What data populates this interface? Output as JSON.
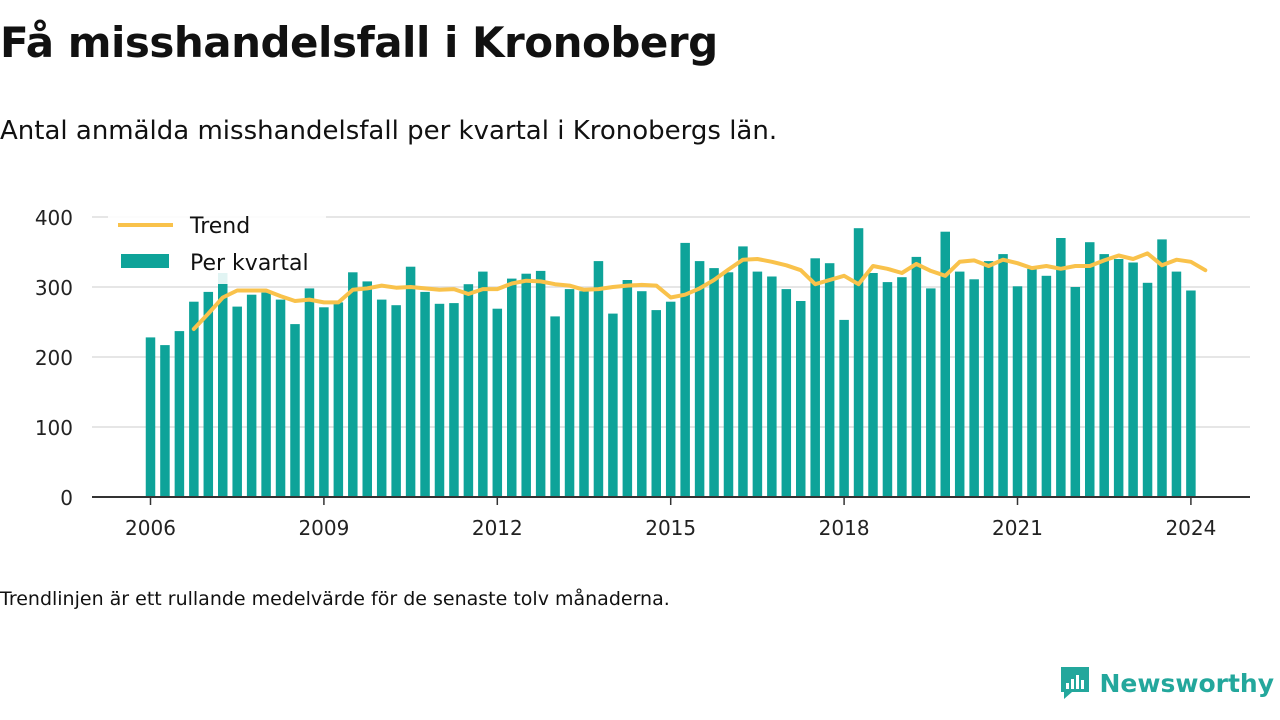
{
  "title": "Få misshandelsfall i Kronoberg",
  "subtitle": "Antal anmälda misshandelsfall per kvartal i Kronobergs län.",
  "note": "Trendlinjen är ett rullande medelvärde för de senaste tolv månaderna.",
  "brand": {
    "name": "Newsworthy",
    "icon": "newsworthy-logo-icon"
  },
  "colors": {
    "bars": "#0ea399",
    "trend": "#f9c24b",
    "grid": "#dddddd",
    "axis": "#333333"
  },
  "chart_data": {
    "type": "bar",
    "x_start": "2006 Q1",
    "xticks": [
      "2006",
      "2009",
      "2012",
      "2015",
      "2018",
      "2021",
      "2024"
    ],
    "yticks": [
      0,
      100,
      200,
      300,
      400
    ],
    "ylim": [
      0,
      400
    ],
    "grid": true,
    "legend_placement": "top-left",
    "series": [
      {
        "name": "Per kvartal",
        "type": "bar",
        "values": [
          228,
          217,
          237,
          279,
          293,
          320,
          272,
          289,
          292,
          282,
          247,
          298,
          271,
          278,
          321,
          308,
          282,
          274,
          329,
          293,
          276,
          277,
          304,
          322,
          269,
          312,
          319,
          323,
          258,
          297,
          294,
          337,
          262,
          310,
          294,
          267,
          279,
          363,
          337,
          327,
          321,
          358,
          322,
          315,
          297,
          280,
          341,
          334,
          253,
          384,
          320,
          307,
          314,
          343,
          298,
          379,
          322,
          311,
          337,
          347,
          301,
          326,
          316,
          370,
          300,
          364,
          347,
          340,
          335,
          306,
          368,
          322,
          295
        ]
      },
      {
        "name": "Trend",
        "type": "line",
        "start": "2006 Q4",
        "values": [
          240,
          262,
          285,
          295,
          295,
          295,
          287,
          280,
          282,
          278,
          278,
          296,
          298,
          302,
          299,
          300,
          298,
          296,
          297,
          290,
          297,
          297,
          305,
          309,
          308,
          304,
          302,
          296,
          297,
          300,
          302,
          303,
          302,
          285,
          289,
          298,
          310,
          325,
          339,
          340,
          336,
          331,
          324,
          304,
          310,
          316,
          304,
          330,
          326,
          320,
          333,
          323,
          316,
          336,
          338,
          330,
          339,
          334,
          327,
          330,
          326,
          330,
          330,
          338,
          345,
          340,
          348,
          331,
          339,
          336,
          324
        ]
      }
    ]
  }
}
